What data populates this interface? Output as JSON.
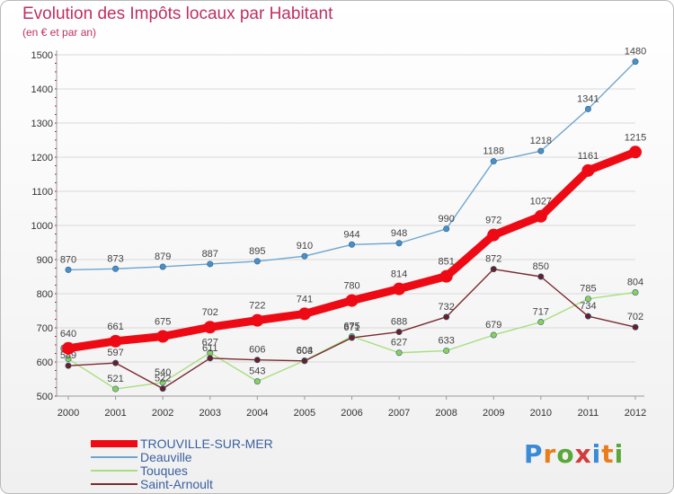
{
  "title": "Evolution des Impôts locaux par Habitant",
  "subtitle": "(en € et par an)",
  "logo": {
    "text": "Proxiti",
    "colors": [
      "#3a8ad6",
      "#e87d1e",
      "#5aa83a",
      "#d23c3c",
      "#3a8ad6",
      "#e87d1e",
      "#5aa83a"
    ]
  },
  "chart_data": {
    "type": "line",
    "x": [
      "2000",
      "2001",
      "2002",
      "2003",
      "2004",
      "2005",
      "2006",
      "2007",
      "2008",
      "2009",
      "2010",
      "2011",
      "2012"
    ],
    "ylim": [
      500,
      1500
    ],
    "yticks": [
      500,
      600,
      700,
      800,
      900,
      1000,
      1100,
      1200,
      1300,
      1400,
      1500
    ],
    "grid": "horizontal",
    "legend_position": "bottom-left",
    "series": [
      {
        "name": "Deauville",
        "color": "#6fa6cf",
        "marker": "#4a8fc5",
        "values": [
          870,
          873,
          879,
          887,
          895,
          910,
          944,
          948,
          990,
          1188,
          1218,
          1341,
          1480
        ]
      },
      {
        "name": "Touques",
        "color": "#a7de7e",
        "marker": "#8ccf5a",
        "values": [
          609,
          521,
          540,
          627,
          543,
          604,
          675,
          627,
          633,
          679,
          717,
          785,
          804
        ]
      },
      {
        "name": "Saint-Arnoult",
        "color": "#7a2a30",
        "marker": "#6a1f25",
        "values": [
          589,
          597,
          522,
          611,
          606,
          603,
          671,
          688,
          732,
          872,
          850,
          734,
          702
        ]
      },
      {
        "name": "TROUVILLE-SUR-MER",
        "color": "#ee0a14",
        "marker": "#ee0a14",
        "values": [
          640,
          661,
          675,
          702,
          722,
          741,
          780,
          814,
          851,
          972,
          1027,
          1161,
          1215
        ]
      }
    ],
    "legend": [
      "TROUVILLE-SUR-MER",
      "Deauville",
      "Touques",
      "Saint-Arnoult"
    ]
  }
}
